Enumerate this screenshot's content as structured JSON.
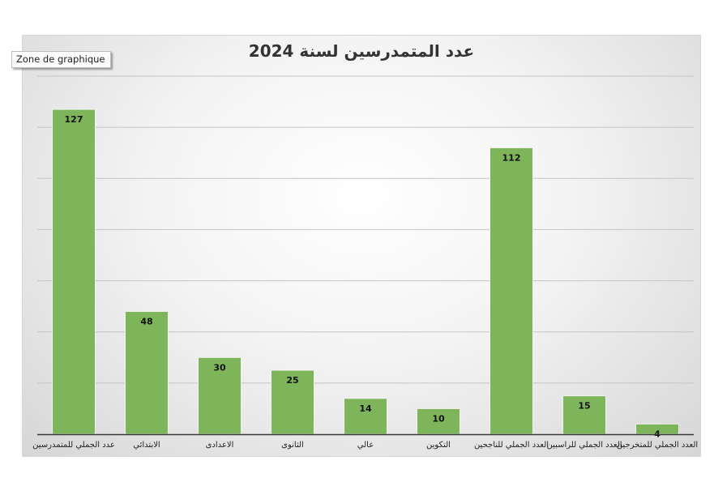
{
  "tooltip": "Zone de graphique",
  "chart_data": {
    "type": "bar",
    "title": "عدد المتمدرسين لسنة 2024",
    "categories": [
      "عدد الجملي للمتمدرسين",
      "الابتدائي",
      "الاعدادى",
      "الثانوى",
      "عالي",
      "التكوين",
      "العدد الجملي للناجحين",
      "العدد الجملي للراسبين",
      "العدد الجملي للمتخرجين"
    ],
    "values": [
      127,
      48,
      30,
      25,
      14,
      10,
      112,
      15,
      4
    ],
    "ylim": [
      0,
      140
    ],
    "grid": true,
    "bar_color": "#7fb55a",
    "bar_edge_color": "#f2f2f2",
    "legend": "none"
  }
}
